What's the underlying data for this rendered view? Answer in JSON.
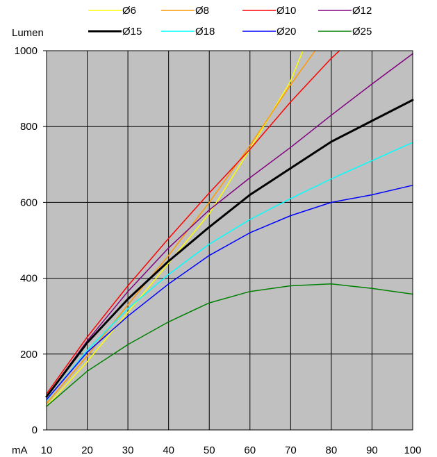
{
  "chart_data": {
    "type": "line",
    "title": "",
    "ylabel": "Lumen",
    "xlabel": "mA",
    "xlim": [
      10,
      100
    ],
    "ylim": [
      0,
      1000
    ],
    "x_ticks": [
      10,
      20,
      30,
      40,
      50,
      60,
      70,
      80,
      90,
      100
    ],
    "y_ticks": [
      0,
      200,
      400,
      600,
      800,
      1000
    ],
    "grid": true,
    "background": "#c0c0c0",
    "legend_position": "top",
    "series": [
      {
        "name": "Ø6",
        "color": "#ffff00",
        "width": 1.5,
        "x": [
          10,
          20,
          30,
          40,
          50,
          60,
          70,
          73
        ],
        "y": [
          62,
          180,
          310,
          440,
          570,
          740,
          920,
          1000
        ]
      },
      {
        "name": "Ø8",
        "color": "#ff9900",
        "width": 1.5,
        "x": [
          10,
          20,
          30,
          40,
          50,
          60,
          70,
          76
        ],
        "y": [
          70,
          195,
          330,
          460,
          600,
          750,
          910,
          1000
        ]
      },
      {
        "name": "Ø10",
        "color": "#ff0000",
        "width": 1.5,
        "x": [
          10,
          20,
          30,
          40,
          50,
          60,
          70,
          80,
          82
        ],
        "y": [
          95,
          245,
          380,
          505,
          625,
          740,
          865,
          980,
          1000
        ]
      },
      {
        "name": "Ø12",
        "color": "#800080",
        "width": 1.5,
        "x": [
          10,
          20,
          30,
          40,
          50,
          60,
          70,
          80,
          90,
          100
        ],
        "y": [
          88,
          235,
          365,
          480,
          580,
          665,
          745,
          830,
          912,
          992
        ]
      },
      {
        "name": "Ø15",
        "color": "#000000",
        "width": 3,
        "x": [
          10,
          20,
          30,
          40,
          50,
          60,
          70,
          80,
          90,
          100
        ],
        "y": [
          88,
          230,
          345,
          445,
          535,
          620,
          690,
          760,
          815,
          870
        ]
      },
      {
        "name": "Ø18",
        "color": "#00ffff",
        "width": 1.5,
        "x": [
          10,
          20,
          30,
          40,
          50,
          60,
          70,
          80,
          90,
          100
        ],
        "y": [
          78,
          210,
          320,
          410,
          490,
          555,
          610,
          662,
          710,
          758
        ]
      },
      {
        "name": "Ø20",
        "color": "#0000ff",
        "width": 1.5,
        "x": [
          10,
          20,
          30,
          40,
          50,
          60,
          70,
          80,
          90,
          100
        ],
        "y": [
          80,
          205,
          300,
          385,
          460,
          520,
          565,
          600,
          620,
          645
        ]
      },
      {
        "name": "Ø25",
        "color": "#008000",
        "width": 1.5,
        "x": [
          10,
          20,
          30,
          40,
          50,
          60,
          70,
          80,
          90,
          100
        ],
        "y": [
          62,
          155,
          225,
          285,
          335,
          365,
          380,
          385,
          373,
          358
        ]
      }
    ]
  }
}
